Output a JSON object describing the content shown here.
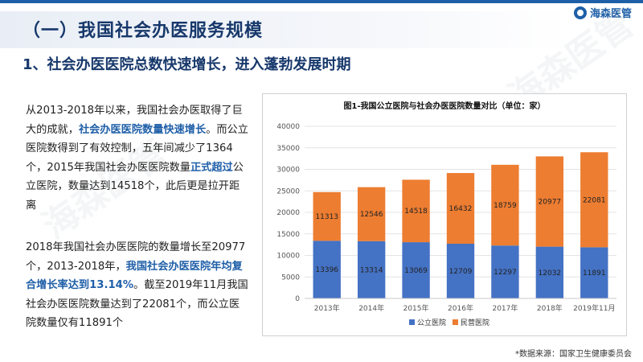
{
  "page": {
    "heading": "（一）我国社会办医服务规模",
    "subheading": "1、社会办医医院总数快速增长，进入蓬勃发展时期",
    "logo_text": "海森医管",
    "watermark_text": "海森医管",
    "source_note": "*数据来源：国家卫生健康委员会"
  },
  "para1": {
    "t1": "从2013-2018年以来，我国社会办医取得了巨大的成就，",
    "h1": "社会办医医院数量快速增长",
    "t2": "。而公立医院数得到了有效控制，五年间减少了1364个，2015年我国社会办医医院数量",
    "h2": "正式超过",
    "t3": "公立医院，数量达到14518个，此后更是拉开距离"
  },
  "para2": {
    "t1": "2018年我国社会办医医院的数量增长至20977个，2013-2018年，",
    "h1": "我国社会办医医院年均复合增长率达到13.14%",
    "t2": "。截至2019年11月我国社会办医医院数量达到了22081个，而公立医院数量仅有11891个"
  },
  "colors": {
    "public": "#4472c4",
    "private": "#ed7d31",
    "accent": "#1f5fa8",
    "heading": "#17386b"
  },
  "chart_data": {
    "type": "bar",
    "stacked": true,
    "title": "图1-我国公立医院与社会办医医院数量对比（单位：家）",
    "categories": [
      "2013年",
      "2014年",
      "2015年",
      "2016年",
      "2017年",
      "2018年",
      "2019年11月"
    ],
    "series": [
      {
        "name": "公立医院",
        "values": [
          13396,
          13314,
          13069,
          12709,
          12297,
          12032,
          11891
        ]
      },
      {
        "name": "民营医院",
        "values": [
          11313,
          12546,
          14518,
          16432,
          18759,
          20977,
          22081
        ]
      }
    ],
    "ylim": [
      0,
      40000
    ],
    "yticks": [
      0,
      5000,
      10000,
      15000,
      20000,
      25000,
      30000,
      35000,
      40000
    ],
    "grid": true,
    "legend": "bottom"
  }
}
